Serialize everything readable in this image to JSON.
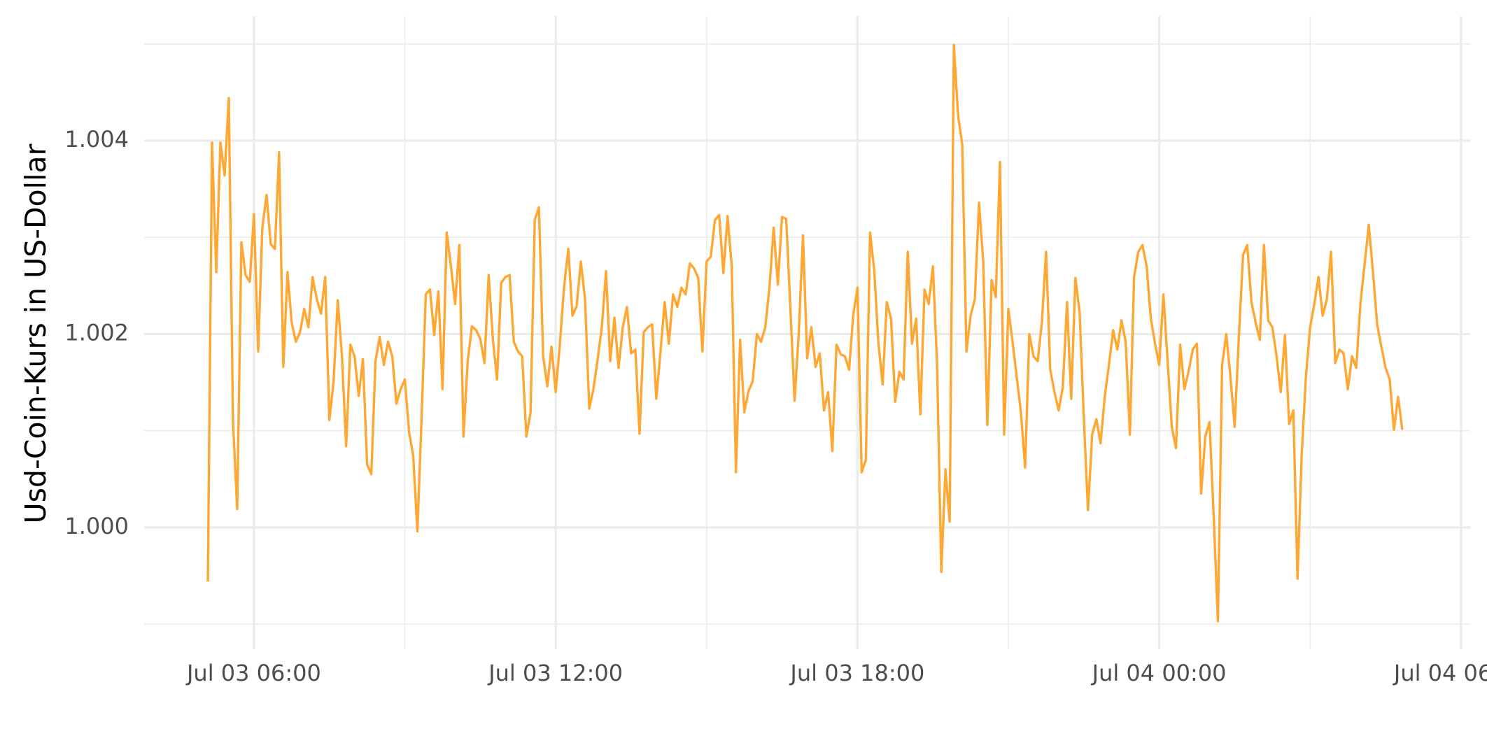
{
  "chart_data": {
    "type": "line",
    "y_label": "Usd-Coin-Kurs in US-Dollar",
    "xlim": [
      "Jul 03 03:49",
      "Jul 04 06:11"
    ],
    "xticks": [
      "Jul 03 06:00",
      "Jul 03 12:00",
      "Jul 03 18:00",
      "Jul 04 00:00",
      "Jul 04 06:00"
    ],
    "x_minor_ticks": [
      "Jul 03 09:00",
      "Jul 03 15:00",
      "Jul 03 21:00",
      "Jul 04 03:00"
    ],
    "ylim": [
      0.99895,
      1.0051
    ],
    "yticks": [
      {
        "value": 1,
        "label": "1.000"
      },
      1.002,
      1.004
    ],
    "y_minor_ticks": [
      0.999,
      1.001,
      1.003,
      1.005
    ],
    "grid": true,
    "x": [
      "Jul 03 05:05",
      "Jul 03 05:10",
      "Jul 03 05:15",
      "Jul 03 05:20",
      "Jul 03 05:25",
      "Jul 03 05:30",
      "Jul 03 05:35",
      "Jul 03 05:40",
      "Jul 03 05:45",
      "Jul 03 05:50",
      "Jul 03 05:55",
      "Jul 03 06:00",
      "Jul 03 06:05",
      "Jul 03 06:10",
      "Jul 03 06:15",
      "Jul 03 06:20",
      "Jul 03 06:25",
      "Jul 03 06:30",
      "Jul 03 06:35",
      "Jul 03 06:40",
      "Jul 03 06:45",
      "Jul 03 06:50",
      "Jul 03 06:55",
      "Jul 03 07:00",
      "Jul 03 07:05",
      "Jul 03 07:10",
      "Jul 03 07:15",
      "Jul 03 07:20",
      "Jul 03 07:25",
      "Jul 03 07:30",
      "Jul 03 07:35",
      "Jul 03 07:40",
      "Jul 03 07:45",
      "Jul 03 07:50",
      "Jul 03 07:55",
      "Jul 03 08:00",
      "Jul 03 08:05",
      "Jul 03 08:10",
      "Jul 03 08:15",
      "Jul 03 08:20",
      "Jul 03 08:25",
      "Jul 03 08:30",
      "Jul 03 08:35",
      "Jul 03 08:40",
      "Jul 03 08:45",
      "Jul 03 08:50",
      "Jul 03 08:55",
      "Jul 03 09:00",
      "Jul 03 09:05",
      "Jul 03 09:10",
      "Jul 03 09:15",
      "Jul 03 09:20",
      "Jul 03 09:25",
      "Jul 03 09:30",
      "Jul 03 09:35",
      "Jul 03 09:40",
      "Jul 03 09:45",
      "Jul 03 09:50",
      "Jul 03 09:55",
      "Jul 03 10:00",
      "Jul 03 10:05",
      "Jul 03 10:10",
      "Jul 03 10:15",
      "Jul 03 10:20",
      "Jul 03 10:25",
      "Jul 03 10:30",
      "Jul 03 10:35",
      "Jul 03 10:40",
      "Jul 03 10:45",
      "Jul 03 10:50",
      "Jul 03 10:55",
      "Jul 03 11:00",
      "Jul 03 11:05",
      "Jul 03 11:10",
      "Jul 03 11:15",
      "Jul 03 11:20",
      "Jul 03 11:25",
      "Jul 03 11:30",
      "Jul 03 11:35",
      "Jul 03 11:40",
      "Jul 03 11:45",
      "Jul 03 11:50",
      "Jul 03 11:55",
      "Jul 03 12:00",
      "Jul 03 12:05",
      "Jul 03 12:10",
      "Jul 03 12:15",
      "Jul 03 12:20",
      "Jul 03 12:25",
      "Jul 03 12:30",
      "Jul 03 12:35",
      "Jul 03 12:40",
      "Jul 03 12:45",
      "Jul 03 12:50",
      "Jul 03 12:55",
      "Jul 03 13:00",
      "Jul 03 13:05",
      "Jul 03 13:10",
      "Jul 03 13:15",
      "Jul 03 13:20",
      "Jul 03 13:25",
      "Jul 03 13:30",
      "Jul 03 13:35",
      "Jul 03 13:40",
      "Jul 03 13:45",
      "Jul 03 13:50",
      "Jul 03 13:55",
      "Jul 03 14:00",
      "Jul 03 14:05",
      "Jul 03 14:10",
      "Jul 03 14:15",
      "Jul 03 14:20",
      "Jul 03 14:25",
      "Jul 03 14:30",
      "Jul 03 14:35",
      "Jul 03 14:40",
      "Jul 03 14:45",
      "Jul 03 14:50",
      "Jul 03 14:55",
      "Jul 03 15:00",
      "Jul 03 15:05",
      "Jul 03 15:10",
      "Jul 03 15:15",
      "Jul 03 15:20",
      "Jul 03 15:25",
      "Jul 03 15:30",
      "Jul 03 15:35",
      "Jul 03 15:40",
      "Jul 03 15:45",
      "Jul 03 15:50",
      "Jul 03 15:55",
      "Jul 03 16:00",
      "Jul 03 16:05",
      "Jul 03 16:10",
      "Jul 03 16:15",
      "Jul 03 16:20",
      "Jul 03 16:25",
      "Jul 03 16:30",
      "Jul 03 16:35",
      "Jul 03 16:40",
      "Jul 03 16:45",
      "Jul 03 16:50",
      "Jul 03 16:55",
      "Jul 03 17:00",
      "Jul 03 17:05",
      "Jul 03 17:10",
      "Jul 03 17:15",
      "Jul 03 17:20",
      "Jul 03 17:25",
      "Jul 03 17:30",
      "Jul 03 17:35",
      "Jul 03 17:40",
      "Jul 03 17:45",
      "Jul 03 17:50",
      "Jul 03 17:55",
      "Jul 03 18:00",
      "Jul 03 18:05",
      "Jul 03 18:10",
      "Jul 03 18:15",
      "Jul 03 18:20",
      "Jul 03 18:25",
      "Jul 03 18:30",
      "Jul 03 18:35",
      "Jul 03 18:40",
      "Jul 03 18:45",
      "Jul 03 18:50",
      "Jul 03 18:55",
      "Jul 03 19:00",
      "Jul 03 19:05",
      "Jul 03 19:10",
      "Jul 03 19:15",
      "Jul 03 19:20",
      "Jul 03 19:25",
      "Jul 03 19:30",
      "Jul 03 19:35",
      "Jul 03 19:40",
      "Jul 03 19:45",
      "Jul 03 19:50",
      "Jul 03 19:55",
      "Jul 03 20:00",
      "Jul 03 20:05",
      "Jul 03 20:10",
      "Jul 03 20:15",
      "Jul 03 20:20",
      "Jul 03 20:25",
      "Jul 03 20:30",
      "Jul 03 20:35",
      "Jul 03 20:40",
      "Jul 03 20:45",
      "Jul 03 20:50",
      "Jul 03 20:55",
      "Jul 03 21:00",
      "Jul 03 21:05",
      "Jul 03 21:10",
      "Jul 03 21:15",
      "Jul 03 21:20",
      "Jul 03 21:25",
      "Jul 03 21:30",
      "Jul 03 21:35",
      "Jul 03 21:40",
      "Jul 03 21:45",
      "Jul 03 21:50",
      "Jul 03 21:55",
      "Jul 03 22:00",
      "Jul 03 22:05",
      "Jul 03 22:10",
      "Jul 03 22:15",
      "Jul 03 22:20",
      "Jul 03 22:25",
      "Jul 03 22:30",
      "Jul 03 22:35",
      "Jul 03 22:40",
      "Jul 03 22:45",
      "Jul 03 22:50",
      "Jul 03 22:55",
      "Jul 03 23:00",
      "Jul 03 23:05",
      "Jul 03 23:10",
      "Jul 03 23:15",
      "Jul 03 23:20",
      "Jul 03 23:25",
      "Jul 03 23:30",
      "Jul 03 23:35",
      "Jul 03 23:40",
      "Jul 03 23:45",
      "Jul 03 23:50",
      "Jul 03 23:55",
      "Jul 04 00:00",
      "Jul 04 00:05",
      "Jul 04 00:10",
      "Jul 04 00:15",
      "Jul 04 00:20",
      "Jul 04 00:25",
      "Jul 04 00:30",
      "Jul 04 00:35",
      "Jul 04 00:40",
      "Jul 04 00:45",
      "Jul 04 00:50",
      "Jul 04 00:55",
      "Jul 04 01:00",
      "Jul 04 01:05",
      "Jul 04 01:10",
      "Jul 04 01:15",
      "Jul 04 01:20",
      "Jul 04 01:25",
      "Jul 04 01:30",
      "Jul 04 01:35",
      "Jul 04 01:40",
      "Jul 04 01:45",
      "Jul 04 01:50",
      "Jul 04 01:55",
      "Jul 04 02:00",
      "Jul 04 02:05",
      "Jul 04 02:10",
      "Jul 04 02:15",
      "Jul 04 02:20",
      "Jul 04 02:25",
      "Jul 04 02:30",
      "Jul 04 02:35",
      "Jul 04 02:40",
      "Jul 04 02:45",
      "Jul 04 02:50",
      "Jul 04 02:55",
      "Jul 04 03:00",
      "Jul 04 03:05",
      "Jul 04 03:10",
      "Jul 04 03:15",
      "Jul 04 03:20",
      "Jul 04 03:25",
      "Jul 04 03:30",
      "Jul 04 03:35",
      "Jul 04 03:40",
      "Jul 04 03:45",
      "Jul 04 03:50",
      "Jul 04 03:55",
      "Jul 04 04:00",
      "Jul 04 04:05",
      "Jul 04 04:10",
      "Jul 04 04:15",
      "Jul 04 04:20",
      "Jul 04 04:25",
      "Jul 04 04:30",
      "Jul 04 04:35",
      "Jul 04 04:40",
      "Jul 04 04:45",
      "Jul 04 04:50"
    ],
    "series": [
      {
        "color": "#ffa733",
        "values": [
          0.99944,
          1.00398,
          1.00264,
          1.00398,
          1.00364,
          1.00444,
          1.00109,
          1.00019,
          1.00295,
          1.00261,
          1.00254,
          1.00324,
          1.00182,
          1.0031,
          1.00344,
          1.00293,
          1.00288,
          1.00388,
          1.00166,
          1.00264,
          1.00212,
          1.00192,
          1.00202,
          1.00226,
          1.00207,
          1.00259,
          1.00236,
          1.00221,
          1.00259,
          1.00111,
          1.00151,
          1.00235,
          1.00177,
          1.00084,
          1.00189,
          1.00177,
          1.00136,
          1.00174,
          1.00065,
          1.00055,
          1.00172,
          1.00197,
          1.00168,
          1.00192,
          1.00177,
          1.00128,
          1.00143,
          1.00153,
          1.00099,
          1.00074,
          0.99996,
          1.00114,
          1.00241,
          1.00246,
          1.00199,
          1.00244,
          1.00143,
          1.00305,
          1.0027,
          1.00231,
          1.00292,
          1.00094,
          1.00172,
          1.00208,
          1.00204,
          1.00195,
          1.0017,
          1.00261,
          1.00195,
          1.00153,
          1.00253,
          1.00259,
          1.00261,
          1.00192,
          1.00182,
          1.00177,
          1.00094,
          1.00119,
          1.00318,
          1.00331,
          1.00177,
          1.00146,
          1.00187,
          1.0014,
          1.0019,
          1.00249,
          1.00288,
          1.00219,
          1.00229,
          1.00275,
          1.00236,
          1.00123,
          1.00143,
          1.00174,
          1.00207,
          1.00265,
          1.00172,
          1.00217,
          1.00165,
          1.00207,
          1.00228,
          1.0018,
          1.00184,
          1.00097,
          1.00202,
          1.00207,
          1.0021,
          1.00133,
          1.00182,
          1.00233,
          1.0019,
          1.00241,
          1.00228,
          1.00248,
          1.00241,
          1.00273,
          1.00268,
          1.00258,
          1.00182,
          1.00275,
          1.0028,
          1.00318,
          1.00323,
          1.00263,
          1.00322,
          1.0027,
          1.00057,
          1.00194,
          1.00119,
          1.00141,
          1.00151,
          1.002,
          1.00192,
          1.00207,
          1.00248,
          1.0031,
          1.00251,
          1.00321,
          1.00319,
          1.00226,
          1.00131,
          1.00202,
          1.00302,
          1.00175,
          1.00207,
          1.00166,
          1.0018,
          1.00121,
          1.0014,
          1.00079,
          1.00189,
          1.00179,
          1.00177,
          1.00163,
          1.0022,
          1.00248,
          1.00057,
          1.0007,
          1.00305,
          1.00266,
          1.0019,
          1.00148,
          1.00233,
          1.00216,
          1.0013,
          1.00161,
          1.00153,
          1.00285,
          1.0019,
          1.00216,
          1.00117,
          1.00246,
          1.00231,
          1.0027,
          1.00168,
          0.99954,
          1.0006,
          1.00006,
          1.00499,
          1.00426,
          1.00396,
          1.00182,
          1.00219,
          1.00236,
          1.00336,
          1.00275,
          1.00106,
          1.00256,
          1.00238,
          1.00378,
          1.00096,
          1.00226,
          1.00192,
          1.00156,
          1.00119,
          1.00062,
          1.002,
          1.00177,
          1.00172,
          1.00212,
          1.00285,
          1.00163,
          1.0014,
          1.00121,
          1.00145,
          1.00233,
          1.00133,
          1.00258,
          1.00223,
          1.00114,
          1.00018,
          1.00096,
          1.00112,
          1.00087,
          1.00135,
          1.00168,
          1.00204,
          1.00184,
          1.00214,
          1.00192,
          1.00096,
          1.00259,
          1.00285,
          1.00292,
          1.0027,
          1.00216,
          1.0019,
          1.00168,
          1.00241,
          1.00172,
          1.00104,
          1.00082,
          1.00189,
          1.00143,
          1.00161,
          1.00184,
          1.0019,
          1.00035,
          1.00094,
          1.00109,
          1.00011,
          0.99903,
          1.00168,
          1.002,
          1.00155,
          1.00104,
          1.00197,
          1.00282,
          1.00292,
          1.00233,
          1.00212,
          1.00194,
          1.00292,
          1.00214,
          1.00207,
          1.00177,
          1.0014,
          1.00199,
          1.00107,
          1.00121,
          0.99947,
          1.00076,
          1.00156,
          1.00207,
          1.00231,
          1.00259,
          1.00219,
          1.00236,
          1.00285,
          1.0017,
          1.00184,
          1.0018,
          1.00143,
          1.00177,
          1.00165,
          1.00231,
          1.00272,
          1.00313,
          1.00264,
          1.0021,
          1.00187,
          1.00165,
          1.00153,
          1.00101,
          1.00135,
          1.00101
        ]
      }
    ]
  }
}
